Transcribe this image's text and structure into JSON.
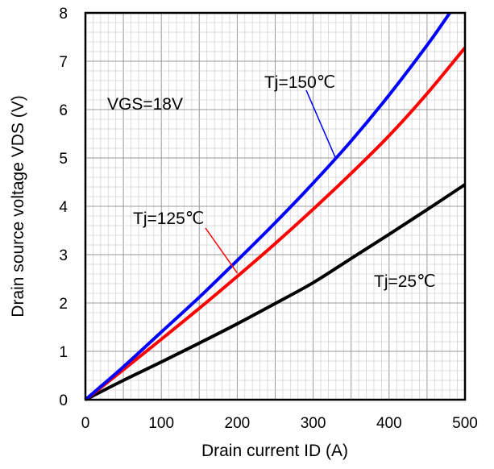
{
  "chart_data": {
    "type": "line",
    "title": "",
    "xlabel": "Drain current ID (A)",
    "ylabel": "Drain source voltage VDS (V)",
    "xlim": [
      0,
      500
    ],
    "ylim": [
      0,
      8
    ],
    "xticks": [
      "0",
      "100",
      "200",
      "300",
      "400",
      "500"
    ],
    "yticks": [
      "0",
      "1",
      "2",
      "3",
      "4",
      "5",
      "6",
      "7",
      "8"
    ],
    "grid": true,
    "series": [
      {
        "name": "Tj=25℃",
        "color": "#000000",
        "x": [
          0,
          50,
          100,
          150,
          200,
          250,
          300,
          350,
          400,
          450,
          500
        ],
        "y": [
          0,
          0.4,
          0.78,
          1.17,
          1.57,
          1.99,
          2.42,
          2.92,
          3.42,
          3.93,
          4.45
        ]
      },
      {
        "name": "Tj=125℃",
        "color": "#ff0000",
        "x": [
          0,
          50,
          100,
          150,
          200,
          250,
          300,
          350,
          400,
          450,
          500
        ],
        "y": [
          0,
          0.62,
          1.25,
          1.89,
          2.55,
          3.23,
          3.94,
          4.68,
          5.46,
          6.33,
          7.28
        ]
      },
      {
        "name": "Tj=150℃",
        "color": "#0000ff",
        "x": [
          0,
          50,
          100,
          150,
          200,
          250,
          300,
          350,
          400,
          450,
          480
        ],
        "y": [
          0,
          0.68,
          1.4,
          2.12,
          2.88,
          3.66,
          4.48,
          5.35,
          6.3,
          7.33,
          8.0
        ]
      }
    ],
    "annotations": [
      {
        "text": "VGS=18V"
      },
      {
        "text": "Tj=150℃",
        "series": "Tj=150℃"
      },
      {
        "text": "Tj=125℃",
        "series": "Tj=125℃"
      },
      {
        "text": "Tj=25℃",
        "series": "Tj=25℃"
      }
    ]
  }
}
